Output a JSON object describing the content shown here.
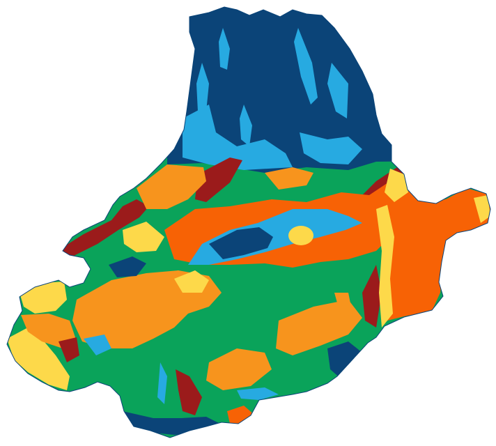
{
  "map": {
    "classes": [
      {
        "id": "class-dark-blue",
        "color": "#0b4478"
      },
      {
        "id": "class-light-blue",
        "color": "#27aae1"
      },
      {
        "id": "class-green",
        "color": "#0aa35a"
      },
      {
        "id": "class-orange",
        "color": "#f7941d"
      },
      {
        "id": "class-red-orange",
        "color": "#f76205"
      },
      {
        "id": "class-yellow",
        "color": "#fdd94a"
      },
      {
        "id": "class-dark-red",
        "color": "#9b1b1b"
      }
    ],
    "background": "#ffffff"
  }
}
